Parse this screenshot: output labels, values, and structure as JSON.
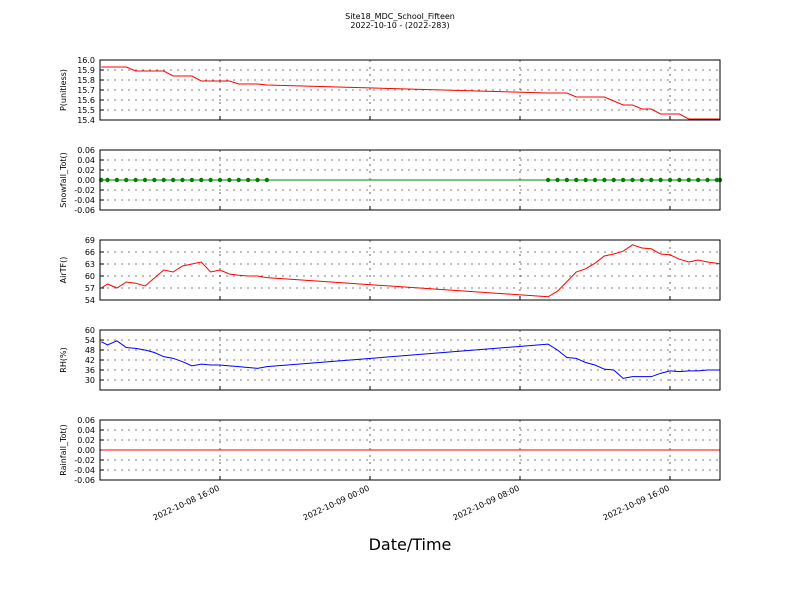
{
  "chart_data": [
    {
      "type": "line",
      "title": "Site18_MDC_School_Fifteen",
      "subtitle": "2022-10-10 - (2022-283)",
      "ylabel": "P(unitless)",
      "color": "#ff0000",
      "grid": true,
      "x": [
        "2022-10-08 09:40",
        "2022-10-08 10:00",
        "2022-10-08 10:30",
        "2022-10-08 11:00",
        "2022-10-08 11:30",
        "2022-10-08 12:00",
        "2022-10-08 12:30",
        "2022-10-08 13:00",
        "2022-10-08 13:30",
        "2022-10-08 14:00",
        "2022-10-08 14:30",
        "2022-10-08 15:00",
        "2022-10-08 15:30",
        "2022-10-08 16:00",
        "2022-10-08 16:30",
        "2022-10-08 17:00",
        "2022-10-08 17:30",
        "2022-10-08 18:00",
        "2022-10-08 18:30",
        "2022-10-09 09:30",
        "2022-10-09 10:00",
        "2022-10-09 10:30",
        "2022-10-09 11:00",
        "2022-10-09 11:30",
        "2022-10-09 12:00",
        "2022-10-09 12:30",
        "2022-10-09 13:00",
        "2022-10-09 13:30",
        "2022-10-09 14:00",
        "2022-10-09 14:30",
        "2022-10-09 15:00",
        "2022-10-09 15:30",
        "2022-10-09 16:00",
        "2022-10-09 16:30",
        "2022-10-09 17:00",
        "2022-10-09 17:30",
        "2022-10-09 18:00",
        "2022-10-09 18:30",
        "2022-10-09 18:40"
      ],
      "values": [
        15.93,
        15.93,
        15.93,
        15.93,
        15.89,
        15.89,
        15.89,
        15.89,
        15.84,
        15.84,
        15.84,
        15.79,
        15.79,
        15.79,
        15.79,
        15.76,
        15.76,
        15.76,
        15.75,
        15.67,
        15.67,
        15.67,
        15.63,
        15.63,
        15.63,
        15.63,
        15.59,
        15.55,
        15.55,
        15.51,
        15.51,
        15.46,
        15.46,
        15.46,
        15.41,
        15.41,
        15.41,
        15.41,
        15.41
      ],
      "xlim": [
        "2022-10-08 09:36",
        "2022-10-09 18:40"
      ],
      "xticks": [
        "2022-10-08 16:00",
        "2022-10-09 00:00",
        "2022-10-09 08:00",
        "2022-10-09 16:00"
      ],
      "ylim": [
        15.4,
        16.0
      ],
      "yticks": [
        15.4,
        15.5,
        15.6,
        15.7,
        15.8,
        15.9,
        {
          "value": 16,
          "label": "16.0"
        }
      ]
    },
    {
      "type": "line",
      "ylabel": "Snowfall_Tot()",
      "color": "#008000",
      "marker": "o",
      "grid": true,
      "x": [
        "2022-10-08 09:40",
        "2022-10-08 10:00",
        "2022-10-08 10:30",
        "2022-10-08 11:00",
        "2022-10-08 11:30",
        "2022-10-08 12:00",
        "2022-10-08 12:30",
        "2022-10-08 13:00",
        "2022-10-08 13:30",
        "2022-10-08 14:00",
        "2022-10-08 14:30",
        "2022-10-08 15:00",
        "2022-10-08 15:30",
        "2022-10-08 16:00",
        "2022-10-08 16:30",
        "2022-10-08 17:00",
        "2022-10-08 17:30",
        "2022-10-08 18:00",
        "2022-10-08 18:30",
        "2022-10-09 09:30",
        "2022-10-09 10:00",
        "2022-10-09 10:30",
        "2022-10-09 11:00",
        "2022-10-09 11:30",
        "2022-10-09 12:00",
        "2022-10-09 12:30",
        "2022-10-09 13:00",
        "2022-10-09 13:30",
        "2022-10-09 14:00",
        "2022-10-09 14:30",
        "2022-10-09 15:00",
        "2022-10-09 15:30",
        "2022-10-09 16:00",
        "2022-10-09 16:30",
        "2022-10-09 17:00",
        "2022-10-09 17:30",
        "2022-10-09 18:00",
        "2022-10-09 18:30",
        "2022-10-09 18:40"
      ],
      "values": [
        0,
        0,
        0,
        0,
        0,
        0,
        0,
        0,
        0,
        0,
        0,
        0,
        0,
        0,
        0,
        0,
        0,
        0,
        0,
        0,
        0,
        0,
        0,
        0,
        0,
        0,
        0,
        0,
        0,
        0,
        0,
        0,
        0,
        0,
        0,
        0,
        0,
        0,
        0
      ],
      "xlim": [
        "2022-10-08 09:36",
        "2022-10-09 18:40"
      ],
      "xticks": [
        "2022-10-08 16:00",
        "2022-10-09 00:00",
        "2022-10-09 08:00",
        "2022-10-09 16:00"
      ],
      "ylim": [
        -0.06,
        0.06
      ],
      "yticks": [
        -0.06,
        -0.04,
        -0.02,
        {
          "value": 0,
          "label": "0.00"
        },
        0.02,
        0.04,
        0.06
      ]
    },
    {
      "type": "line",
      "ylabel": "AirTF()",
      "color": "#ff0000",
      "grid": true,
      "x": [
        "2022-10-08 09:40",
        "2022-10-08 10:00",
        "2022-10-08 10:30",
        "2022-10-08 11:00",
        "2022-10-08 11:30",
        "2022-10-08 12:00",
        "2022-10-08 12:30",
        "2022-10-08 13:00",
        "2022-10-08 13:30",
        "2022-10-08 14:00",
        "2022-10-08 14:30",
        "2022-10-08 15:00",
        "2022-10-08 15:30",
        "2022-10-08 16:00",
        "2022-10-08 16:30",
        "2022-10-08 17:00",
        "2022-10-08 17:30",
        "2022-10-08 18:00",
        "2022-10-08 18:30",
        "2022-10-09 09:30",
        "2022-10-09 10:00",
        "2022-10-09 10:30",
        "2022-10-09 11:00",
        "2022-10-09 11:30",
        "2022-10-09 12:00",
        "2022-10-09 12:30",
        "2022-10-09 13:00",
        "2022-10-09 13:30",
        "2022-10-09 14:00",
        "2022-10-09 14:30",
        "2022-10-09 15:00",
        "2022-10-09 15:30",
        "2022-10-09 16:00",
        "2022-10-09 16:30",
        "2022-10-09 17:00",
        "2022-10-09 17:30",
        "2022-10-09 18:00",
        "2022-10-09 18:30",
        "2022-10-09 18:40"
      ],
      "values": [
        57,
        58,
        57,
        58.5,
        58.2,
        57.5,
        59.5,
        61.5,
        61,
        62.5,
        63,
        63.5,
        61,
        61.5,
        60.5,
        60.2,
        60,
        60,
        59.6,
        54.8,
        56.2,
        58.6,
        61,
        61.8,
        63.2,
        65,
        65.5,
        66.2,
        67.8,
        67,
        66.8,
        65.5,
        65.3,
        64.2,
        63.5,
        64,
        63.5,
        63.2,
        63
      ],
      "xlim": [
        "2022-10-08 09:36",
        "2022-10-09 18:40"
      ],
      "xticks": [
        "2022-10-08 16:00",
        "2022-10-09 00:00",
        "2022-10-09 08:00",
        "2022-10-09 16:00"
      ],
      "ylim": [
        54,
        69
      ],
      "yticks": [
        54,
        57,
        60,
        63,
        66,
        69
      ]
    },
    {
      "type": "line",
      "ylabel": "RH(%)",
      "color": "#0000ff",
      "grid": true,
      "x": [
        "2022-10-08 09:40",
        "2022-10-08 10:00",
        "2022-10-08 10:30",
        "2022-10-08 11:00",
        "2022-10-08 11:30",
        "2022-10-08 12:00",
        "2022-10-08 12:30",
        "2022-10-08 13:00",
        "2022-10-08 13:30",
        "2022-10-08 14:00",
        "2022-10-08 14:30",
        "2022-10-08 15:00",
        "2022-10-08 15:30",
        "2022-10-08 16:00",
        "2022-10-08 16:30",
        "2022-10-08 17:00",
        "2022-10-08 17:30",
        "2022-10-08 18:00",
        "2022-10-08 18:30",
        "2022-10-09 09:30",
        "2022-10-09 10:00",
        "2022-10-09 10:30",
        "2022-10-09 11:00",
        "2022-10-09 11:30",
        "2022-10-09 12:00",
        "2022-10-09 12:30",
        "2022-10-09 13:00",
        "2022-10-09 13:30",
        "2022-10-09 14:00",
        "2022-10-09 14:30",
        "2022-10-09 15:00",
        "2022-10-09 15:30",
        "2022-10-09 16:00",
        "2022-10-09 16:30",
        "2022-10-09 17:00",
        "2022-10-09 17:30",
        "2022-10-09 18:00",
        "2022-10-09 18:30",
        "2022-10-09 18:40"
      ],
      "values": [
        53,
        51,
        53.5,
        49.5,
        49,
        48,
        46.5,
        44,
        43,
        41,
        38.5,
        39.5,
        39,
        39,
        38.5,
        38,
        37.5,
        37,
        38,
        51.5,
        48,
        43.5,
        43,
        40.5,
        39,
        36.5,
        36,
        31,
        32,
        32,
        32,
        34,
        35.5,
        35,
        35.5,
        35.5,
        36,
        36,
        36
      ],
      "xlim": [
        "2022-10-08 09:36",
        "2022-10-09 18:40"
      ],
      "xticks": [
        "2022-10-08 16:00",
        "2022-10-09 00:00",
        "2022-10-09 08:00",
        "2022-10-09 16:00"
      ],
      "ylim": [
        24,
        60
      ],
      "yticks": [
        30,
        36,
        42,
        48,
        54,
        60
      ]
    },
    {
      "type": "line",
      "ylabel": "Rainfall_Tot()",
      "xlabel": "Date/Time",
      "color": "#ff0000",
      "grid": true,
      "x": [
        "2022-10-08 09:40",
        "2022-10-08 10:00",
        "2022-10-08 10:30",
        "2022-10-08 11:00",
        "2022-10-08 11:30",
        "2022-10-08 12:00",
        "2022-10-08 12:30",
        "2022-10-08 13:00",
        "2022-10-08 13:30",
        "2022-10-08 14:00",
        "2022-10-08 14:30",
        "2022-10-08 15:00",
        "2022-10-08 15:30",
        "2022-10-08 16:00",
        "2022-10-08 16:30",
        "2022-10-08 17:00",
        "2022-10-08 17:30",
        "2022-10-08 18:00",
        "2022-10-08 18:30",
        "2022-10-09 09:30",
        "2022-10-09 10:00",
        "2022-10-09 10:30",
        "2022-10-09 11:00",
        "2022-10-09 11:30",
        "2022-10-09 12:00",
        "2022-10-09 12:30",
        "2022-10-09 13:00",
        "2022-10-09 13:30",
        "2022-10-09 14:00",
        "2022-10-09 14:30",
        "2022-10-09 15:00",
        "2022-10-09 15:30",
        "2022-10-09 16:00",
        "2022-10-09 16:30",
        "2022-10-09 17:00",
        "2022-10-09 17:30",
        "2022-10-09 18:00",
        "2022-10-09 18:30",
        "2022-10-09 18:40"
      ],
      "values": [
        0,
        0,
        0,
        0,
        0,
        0,
        0,
        0,
        0,
        0,
        0,
        0,
        0,
        0,
        0,
        0,
        0,
        0,
        0,
        0,
        0,
        0,
        0,
        0,
        0,
        0,
        0,
        0,
        0,
        0,
        0,
        0,
        0,
        0,
        0,
        0,
        0,
        0,
        0
      ],
      "xlim": [
        "2022-10-08 09:36",
        "2022-10-09 18:40"
      ],
      "xticks": [
        "2022-10-08 16:00",
        "2022-10-09 00:00",
        "2022-10-09 08:00",
        "2022-10-09 16:00"
      ],
      "ylim": [
        -0.06,
        0.06
      ],
      "yticks": [
        -0.06,
        -0.04,
        -0.02,
        {
          "value": 0,
          "label": "0.00"
        },
        0.02,
        0.04,
        0.06
      ]
    }
  ]
}
